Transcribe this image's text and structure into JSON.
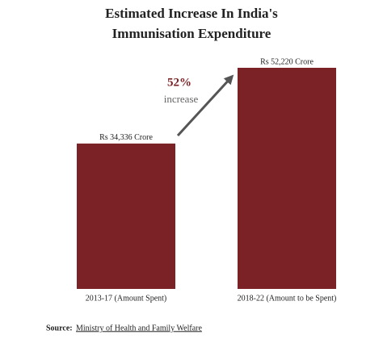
{
  "chart_data": {
    "type": "bar",
    "title": [
      "Estimated Increase In India's",
      "Immunisation Expenditure"
    ],
    "categories": [
      "2013-17 (Amount Spent)",
      "2018-22 (Amount to be Spent)"
    ],
    "values": [
      34336,
      52220
    ],
    "value_labels": [
      "Rs 34,336 Crore",
      "Rs 52,220 Crore"
    ],
    "color": "#7a2226",
    "annotation": {
      "value": "52%",
      "text": "increase"
    },
    "source_label": "Source:",
    "source": "Ministry of Health and Family Welfare"
  }
}
